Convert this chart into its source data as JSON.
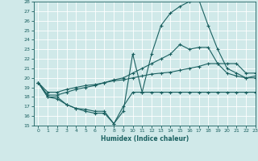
{
  "xlabel": "Humidex (Indice chaleur)",
  "xlim": [
    -0.5,
    23
  ],
  "ylim": [
    15,
    28
  ],
  "yticks": [
    15,
    16,
    17,
    18,
    19,
    20,
    21,
    22,
    23,
    24,
    25,
    26,
    27,
    28
  ],
  "xticks": [
    0,
    1,
    2,
    3,
    4,
    5,
    6,
    7,
    8,
    9,
    10,
    11,
    12,
    13,
    14,
    15,
    16,
    17,
    18,
    19,
    20,
    21,
    22,
    23
  ],
  "bg_color": "#d0e9e9",
  "grid_color": "#b8d8d8",
  "line_color": "#1a6060",
  "hours": [
    0,
    1,
    2,
    3,
    4,
    5,
    6,
    7,
    8,
    9,
    10,
    11,
    12,
    13,
    14,
    15,
    16,
    17,
    18,
    19,
    20,
    21,
    22,
    23
  ],
  "line_top": [
    19.5,
    18.0,
    18.0,
    17.2,
    16.8,
    16.5,
    16.3,
    16.3,
    15.2,
    16.5,
    22.5,
    18.5,
    22.5,
    25.5,
    26.8,
    27.5,
    28.0,
    28.2,
    25.5,
    23.0,
    21.0,
    20.5,
    20.0,
    20.0
  ],
  "line_upper": [
    19.5,
    18.2,
    18.2,
    18.5,
    18.8,
    19.0,
    19.2,
    19.5,
    19.8,
    20.0,
    20.5,
    21.0,
    21.5,
    22.0,
    22.5,
    23.5,
    23.0,
    23.2,
    23.2,
    21.5,
    20.5,
    20.2,
    20.0,
    20.2
  ],
  "line_lower": [
    19.5,
    18.5,
    18.5,
    18.8,
    19.0,
    19.2,
    19.3,
    19.5,
    19.7,
    19.8,
    20.0,
    20.2,
    20.4,
    20.5,
    20.6,
    20.8,
    21.0,
    21.2,
    21.5,
    21.5,
    21.5,
    21.5,
    20.5,
    20.5
  ],
  "line_bot": [
    19.5,
    18.0,
    17.8,
    17.2,
    16.8,
    16.7,
    16.5,
    16.5,
    15.2,
    17.0,
    18.5,
    18.5,
    18.5,
    18.5,
    18.5,
    18.5,
    18.5,
    18.5,
    18.5,
    18.5,
    18.5,
    18.5,
    18.5,
    18.5
  ]
}
